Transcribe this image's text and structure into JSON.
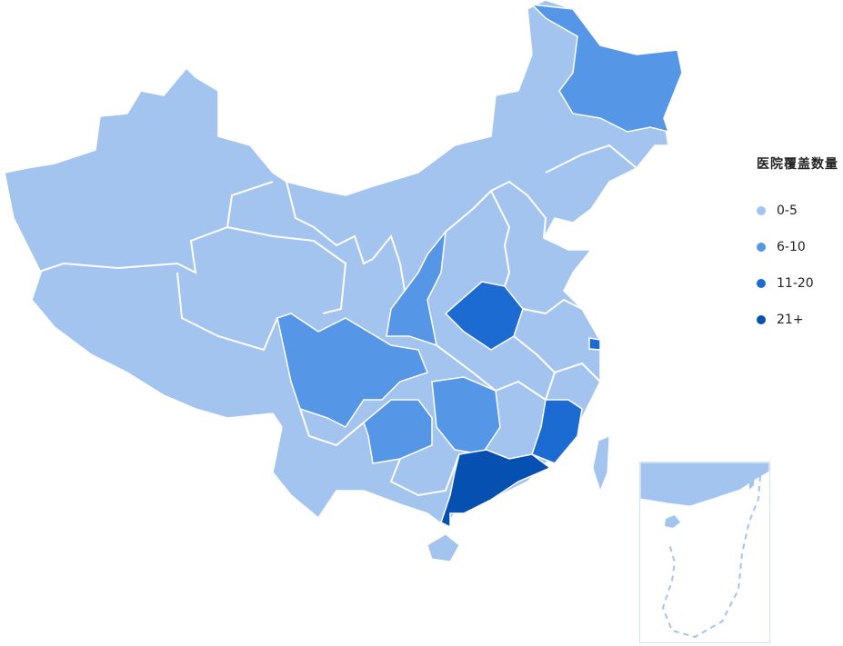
{
  "legend": {
    "title": "医院覆盖数量",
    "items": [
      {
        "label": "0-5",
        "color": "#a3c4ef"
      },
      {
        "label": "6-10",
        "color": "#5596e6"
      },
      {
        "label": "11-20",
        "color": "#1c6bd3"
      },
      {
        "label": "21+",
        "color": "#0550b0"
      }
    ]
  },
  "regions": [
    {
      "id": "heilongjiang",
      "level": "6-10"
    },
    {
      "id": "shaanxi",
      "level": "6-10"
    },
    {
      "id": "sichuan",
      "level": "6-10"
    },
    {
      "id": "guizhou",
      "level": "6-10"
    },
    {
      "id": "hunan",
      "level": "6-10"
    },
    {
      "id": "henan",
      "level": "11-20"
    },
    {
      "id": "fujian",
      "level": "11-20"
    },
    {
      "id": "shanghai",
      "level": "11-20"
    },
    {
      "id": "guangdong",
      "level": "21+"
    }
  ],
  "default_level": "0-5",
  "border_color": "#ffffff"
}
